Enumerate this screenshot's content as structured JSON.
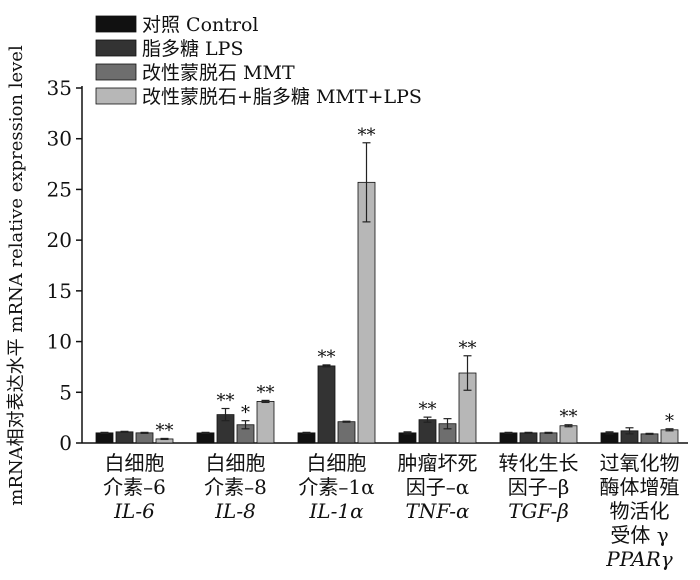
{
  "chart_data": {
    "type": "bar",
    "ylabel": "mRNA相对表达水平 mRNA relative expression level",
    "ylim": [
      0,
      35
    ],
    "yticks": [
      0,
      5,
      10,
      15,
      20,
      25,
      30,
      35
    ],
    "grid": false,
    "legend_position": "top-left",
    "categories": [
      {
        "lines": [
          "白细胞",
          "介素–6"
        ],
        "italic": "IL-6"
      },
      {
        "lines": [
          "白细胞",
          "介素–8"
        ],
        "italic": "IL-8"
      },
      {
        "lines": [
          "白细胞",
          "介素–1α"
        ],
        "italic": "IL-1α"
      },
      {
        "lines": [
          "肿瘤坏死",
          "因子–α"
        ],
        "italic": "TNF-α"
      },
      {
        "lines": [
          "转化生长",
          "因子–β"
        ],
        "italic": "TGF-β"
      },
      {
        "lines": [
          "过氧化物",
          "酶体增殖",
          "物活化",
          "受体 γ"
        ],
        "italic": "PPARγ"
      }
    ],
    "series": [
      {
        "name": "对照 Control",
        "color": "#111111",
        "values": [
          1.0,
          1.0,
          1.0,
          1.0,
          1.0,
          1.0
        ],
        "errors": [
          0.05,
          0.05,
          0.05,
          0.1,
          0.05,
          0.1
        ],
        "stars": [
          "",
          "",
          "",
          "",
          "",
          ""
        ]
      },
      {
        "name": "脂多糖 LPS",
        "color": "#333333",
        "values": [
          1.1,
          2.8,
          7.6,
          2.3,
          1.0,
          1.2
        ],
        "errors": [
          0.05,
          0.6,
          0.1,
          0.25,
          0.05,
          0.3
        ],
        "stars": [
          "",
          "**",
          "**",
          "**",
          "",
          ""
        ]
      },
      {
        "name": "改性蒙脱石 MMT",
        "color": "#6e6e6e",
        "values": [
          1.0,
          1.8,
          2.1,
          1.9,
          1.0,
          0.9
        ],
        "errors": [
          0.05,
          0.4,
          0.05,
          0.5,
          0.05,
          0.05
        ],
        "stars": [
          "",
          "*",
          "",
          "",
          "",
          ""
        ]
      },
      {
        "name": "改性蒙脱石+脂多糖 MMT+LPS",
        "color": "#b7b7b7",
        "values": [
          0.4,
          4.1,
          25.7,
          6.9,
          1.7,
          1.3
        ],
        "errors": [
          0.05,
          0.1,
          3.9,
          1.7,
          0.1,
          0.1
        ],
        "stars": [
          "**",
          "**",
          "**",
          "**",
          "**",
          "*"
        ]
      }
    ]
  }
}
